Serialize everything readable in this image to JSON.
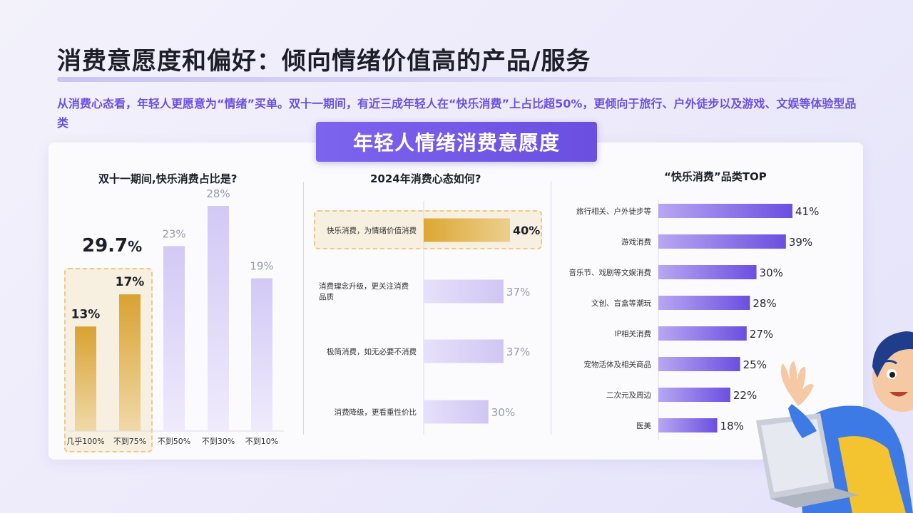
{
  "page": {
    "title": "消费意愿度和偏好：倾向情绪价值高的产品/服务",
    "subtitle": "从消费心态看，年轻人更愿意为“情绪”买单。双十一期间，有近三成年轻人在“快乐消费”上占比超50%，更倾向于旅行、户外徒步以及游戏、文娱等体验型品类",
    "banner": "年轻人情绪消费意愿度"
  },
  "colors": {
    "gold": "#e0a92c",
    "purple_dark": "#6a4fe0",
    "purple_light": "#d6cff6"
  },
  "chart_data": [
    {
      "type": "bar",
      "title": "双十一期间,快乐消费占比是?",
      "categories": [
        "几乎100%",
        "不到75%",
        "不到50%",
        "不到30%",
        "不到10%"
      ],
      "values": [
        13,
        17,
        23,
        28,
        19
      ],
      "labels": [
        "13%",
        "17%",
        "23%",
        "28%",
        "19%"
      ],
      "highlighted": [
        0,
        1
      ],
      "highlight_total": "29.7",
      "highlight_total_unit": "%"
    },
    {
      "type": "bar",
      "orientation": "horizontal",
      "title": "2024年消费心态如何?",
      "categories": [
        "快乐消费，为情绪价值消费",
        "消费理念升级，更关注消费品质",
        "极简消费，如无必要不消费",
        "消费降级，更看重性价比"
      ],
      "values": [
        40,
        37,
        37,
        30
      ],
      "labels": [
        "40%",
        "37%",
        "37%",
        "30%"
      ],
      "highlighted": [
        0
      ]
    },
    {
      "type": "bar",
      "orientation": "horizontal",
      "title": "“快乐消费”品类TOP",
      "categories": [
        "旅行相关、户外徒步等",
        "游戏消费",
        "音乐节、戏剧等文娱消费",
        "文创、盲盒等潮玩",
        "IP相关消费",
        "宠物活体及相关商品",
        "二次元及周边",
        "医美"
      ],
      "values": [
        41,
        39,
        30,
        28,
        27,
        25,
        22,
        18
      ],
      "labels": [
        "41%",
        "39%",
        "30%",
        "28%",
        "27%",
        "25%",
        "22%",
        "18%"
      ]
    }
  ]
}
